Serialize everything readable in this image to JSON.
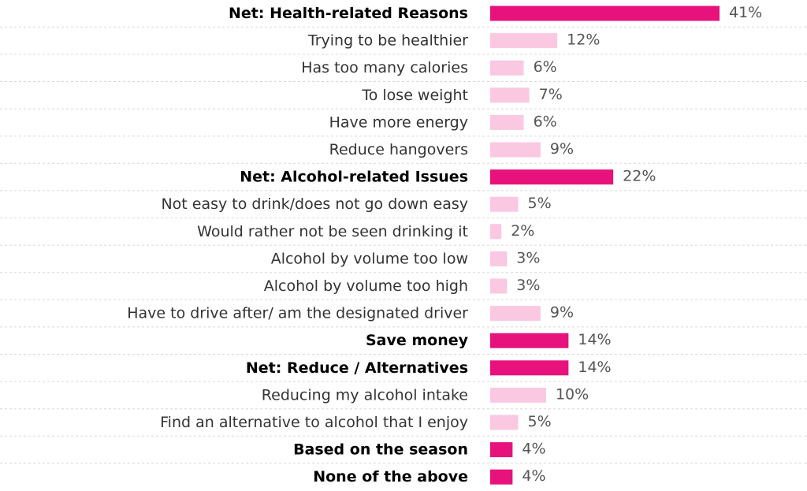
{
  "chart_data": {
    "type": "bar",
    "orientation": "horizontal",
    "title": "",
    "xlabel": "",
    "ylabel": "",
    "value_suffix": "%",
    "xlim": [
      0,
      41
    ],
    "grid": false,
    "legend": "none",
    "colors": {
      "net": "#e8127c",
      "sub": "#fbc8e2",
      "separator": "#d8d8d8"
    },
    "categories": [
      "Net: Health-related Reasons",
      "Trying to be healthier",
      "Has too many calories",
      "To lose weight",
      "Have more energy",
      "Reduce hangovers",
      "Net: Alcohol-related Issues",
      "Not easy to drink/does not go down easy",
      "Would rather not be seen drinking it",
      "Alcohol by volume too low",
      "Alcohol by volume too high",
      "Have to drive after/ am the designated driver",
      "Save money",
      "Net: Reduce / Alternatives",
      "Reducing my alcohol intake",
      "Find an alternative to alcohol that I enjoy",
      "Based on the season",
      "None of the above"
    ],
    "values": [
      41,
      12,
      6,
      7,
      6,
      9,
      22,
      5,
      2,
      3,
      3,
      9,
      14,
      14,
      10,
      5,
      4,
      4
    ],
    "value_labels": [
      "41%",
      "12%",
      "6%",
      "7%",
      "6%",
      "9%",
      "22%",
      "5%",
      "2%",
      "3%",
      "3%",
      "9%",
      "14%",
      "14%",
      "10%",
      "5%",
      "4%",
      "4%"
    ],
    "is_net": [
      true,
      false,
      false,
      false,
      false,
      false,
      true,
      false,
      false,
      false,
      false,
      false,
      true,
      true,
      false,
      false,
      true,
      true
    ]
  }
}
